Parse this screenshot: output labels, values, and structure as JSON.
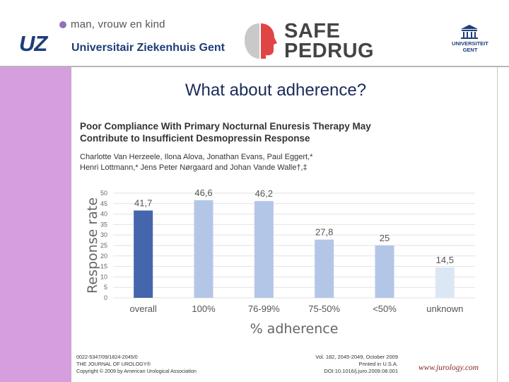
{
  "header": {
    "uz_tagline": "man, vrouw en kind",
    "uz_mark": "UZ",
    "uz_name": "Universitair Ziekenhuis Gent",
    "safe": "SAFE",
    "pedrug": "PEDRUG",
    "ghent_line1": "UNIVERSITEIT",
    "ghent_line2": "GENT"
  },
  "slide_title": "What about adherence?",
  "paper": {
    "title": "Poor Compliance With Primary Nocturnal Enuresis Therapy May Contribute to Insufficient Desmopressin Response",
    "authors_line1": "Charlotte Van Herzeele, Ilona Alova, Jonathan Evans, Paul Eggert,*",
    "authors_line2": "Henri Lottmann,* Jens Peter Nørgaard and Johan Vande Walle†,‡"
  },
  "chart_data": {
    "type": "bar",
    "categories": [
      "overall",
      "100%",
      "76-99%",
      "75-50%",
      "<50%",
      "unknown"
    ],
    "values": [
      41.7,
      46.6,
      46.2,
      27.8,
      25,
      14.5
    ],
    "value_labels": [
      "41,7",
      "46,6",
      "46,2",
      "27,8",
      "25",
      "14,5"
    ],
    "colors": [
      "#4565ad",
      "#b4c6e7",
      "#b4c6e7",
      "#b4c6e7",
      "#b4c6e7",
      "#dce7f5"
    ],
    "xlabel": "% adherence",
    "ylabel": "Response rate",
    "ylim": [
      0,
      50
    ],
    "yticks": [
      0,
      5,
      10,
      15,
      20,
      25,
      30,
      35,
      40,
      45,
      50
    ],
    "grid": true
  },
  "footer": {
    "left_line1": "0022-5347/09/1824-2045/0",
    "left_line2": "THE JOURNAL OF UROLOGY®",
    "left_line3": "Copyright © 2009 by American Urological Association",
    "mid_line1": "Vol. 182, 2045-2049, October 2009",
    "mid_line2": "Printed in U.S.A.",
    "mid_line3": "DOI:10.1016/j.juro.2009.08.001",
    "right": "www.jurology.com"
  }
}
